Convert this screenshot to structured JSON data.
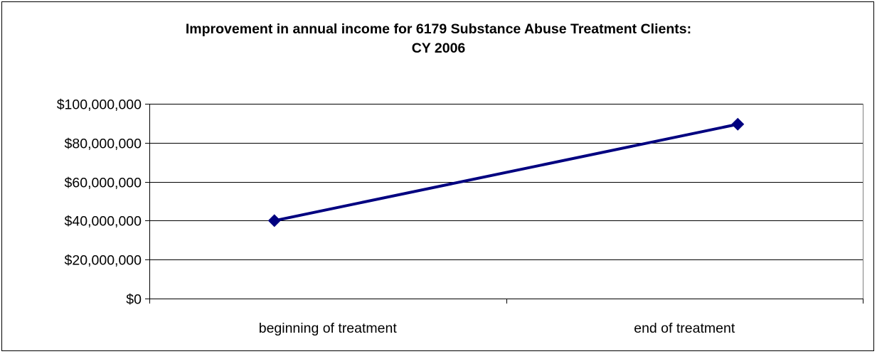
{
  "chart_data": {
    "type": "line",
    "title_lines": [
      "Improvement in annual income for 6179 Substance Abuse Treatment Clients:",
      "CY 2006"
    ],
    "categories": [
      "beginning of treatment",
      "end of treatment"
    ],
    "series": [
      {
        "values": [
          40000000,
          89500000
        ],
        "color": "#000080",
        "marker": "diamond"
      }
    ],
    "ylim": [
      0,
      100000000
    ],
    "yticks": [
      0,
      20000000,
      40000000,
      60000000,
      80000000,
      100000000
    ],
    "ytick_labels": [
      "$0",
      "$20,000,000",
      "$40,000,000",
      "$60,000,000",
      "$80,000,000",
      "$100,000,000"
    ],
    "grid": true,
    "legend": "none"
  }
}
